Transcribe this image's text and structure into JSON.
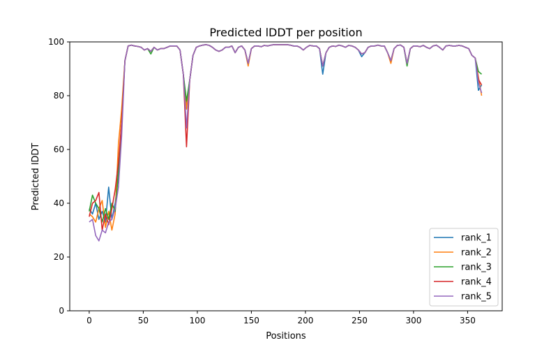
{
  "chart_data": {
    "type": "line",
    "title": "Predicted lDDT per position",
    "xlabel": "Positions",
    "ylabel": "Predicted lDDT",
    "xlim": [
      -18,
      382
    ],
    "ylim": [
      0,
      100
    ],
    "xticks": [
      0,
      50,
      100,
      150,
      200,
      250,
      300,
      350
    ],
    "yticks": [
      0,
      20,
      40,
      60,
      80,
      100
    ],
    "grid": false,
    "legend": "lower-right",
    "x": [
      0,
      3,
      6,
      9,
      12,
      15,
      18,
      21,
      24,
      27,
      30,
      33,
      36,
      39,
      42,
      45,
      48,
      51,
      54,
      57,
      60,
      63,
      66,
      69,
      72,
      75,
      78,
      81,
      84,
      87,
      90,
      93,
      96,
      99,
      102,
      105,
      108,
      111,
      114,
      117,
      120,
      123,
      126,
      129,
      132,
      135,
      138,
      141,
      144,
      147,
      150,
      153,
      156,
      159,
      162,
      165,
      168,
      171,
      174,
      177,
      180,
      183,
      186,
      189,
      192,
      195,
      198,
      201,
      204,
      207,
      210,
      213,
      216,
      219,
      222,
      225,
      228,
      231,
      234,
      237,
      240,
      243,
      246,
      249,
      252,
      255,
      258,
      261,
      264,
      267,
      270,
      273,
      276,
      279,
      282,
      285,
      288,
      291,
      294,
      297,
      300,
      303,
      306,
      309,
      312,
      315,
      318,
      321,
      324,
      327,
      330,
      333,
      336,
      339,
      342,
      345,
      348,
      351,
      354,
      357,
      360,
      363
    ],
    "series": [
      {
        "name": "rank_1",
        "color": "#1f77b4",
        "values": [
          38,
          36,
          40,
          34,
          37,
          33,
          46,
          34,
          40,
          50,
          70,
          93,
          98.5,
          98.8,
          98.5,
          98.3,
          98,
          97,
          97.5,
          96.5,
          98,
          97,
          97.5,
          97.5,
          98,
          98.5,
          98.5,
          98.5,
          97,
          88,
          76,
          86,
          95,
          98,
          98.5,
          98.8,
          99,
          98.7,
          98,
          97,
          96.5,
          97,
          98,
          98,
          98.5,
          96,
          98,
          98.5,
          97,
          92,
          97.5,
          98.5,
          98.5,
          98.2,
          98.7,
          98.5,
          98.8,
          99,
          99,
          99,
          99,
          99,
          98.8,
          98.5,
          98.5,
          98,
          97,
          98,
          98.7,
          98.5,
          98.5,
          97.5,
          88,
          96,
          98,
          98.5,
          98.3,
          98.8,
          98.5,
          98,
          98.7,
          98.5,
          98,
          97,
          94.5,
          96,
          98,
          98.5,
          98.5,
          98.8,
          98.5,
          98.5,
          96,
          93,
          97.5,
          98.7,
          98.8,
          98,
          92,
          97.5,
          98.5,
          98.5,
          98.2,
          98.7,
          98,
          97.5,
          98.5,
          98.8,
          98,
          97,
          98.5,
          98.7,
          98.5,
          98.5,
          98.7,
          98.5,
          98,
          97.5,
          95,
          94,
          82,
          84
        ]
      },
      {
        "name": "rank_2",
        "color": "#ff7f0e",
        "values": [
          36,
          35,
          33,
          38,
          41,
          31,
          37,
          30,
          36,
          62,
          75,
          93,
          98.5,
          98.8,
          98.5,
          98.3,
          98,
          97,
          97.5,
          96.5,
          98,
          97,
          97.5,
          97.5,
          98,
          98.5,
          98.5,
          98.5,
          97,
          88,
          75,
          86,
          95,
          98,
          98.5,
          98.8,
          99,
          98.7,
          98,
          97,
          96.5,
          97,
          98,
          98,
          98.5,
          96,
          98,
          98.5,
          97,
          91,
          97.5,
          98.5,
          98.5,
          98.2,
          98.7,
          98.5,
          98.8,
          99,
          99,
          99,
          99,
          99,
          98.8,
          98.5,
          98.5,
          98,
          97,
          98,
          98.7,
          98.5,
          98.5,
          97.5,
          91,
          96,
          98,
          98.5,
          98.3,
          98.8,
          98.5,
          98,
          98.7,
          98.5,
          98,
          97,
          95.5,
          96,
          98,
          98.5,
          98.5,
          98.8,
          98.5,
          98.5,
          96,
          92,
          97.5,
          98.7,
          98.8,
          98,
          92,
          97.5,
          98.5,
          98.5,
          98.2,
          98.7,
          98,
          97.5,
          98.5,
          98.8,
          98,
          97,
          98.5,
          98.7,
          98.5,
          98.5,
          98.7,
          98.5,
          98,
          97.5,
          95,
          94,
          87,
          80
        ]
      },
      {
        "name": "rank_3",
        "color": "#2ca02c",
        "values": [
          37,
          43,
          40,
          38,
          33,
          38,
          34,
          40,
          37,
          52,
          70,
          93,
          98.5,
          98.8,
          98.5,
          98.3,
          98,
          97,
          97.5,
          95.5,
          98,
          97,
          97.5,
          97.5,
          98,
          98.5,
          98.5,
          98.5,
          97,
          88,
          78,
          86,
          95,
          98,
          98.5,
          98.8,
          99,
          98.7,
          98,
          97,
          96.5,
          97,
          98,
          98,
          98.5,
          96,
          98,
          98.5,
          97,
          92,
          97.5,
          98.5,
          98.5,
          98.2,
          98.7,
          98.5,
          98.8,
          99,
          99,
          99,
          99,
          99,
          98.8,
          98.5,
          98.5,
          98,
          97,
          98,
          98.7,
          98.5,
          98.5,
          97.5,
          91,
          96,
          98,
          98.5,
          98.3,
          98.8,
          98.5,
          98,
          98.7,
          98.5,
          98,
          97,
          95.5,
          96,
          98,
          98.5,
          98.5,
          98.8,
          98.5,
          98.5,
          96,
          93,
          97.5,
          98.7,
          98.8,
          98,
          91,
          97.5,
          98.5,
          98.5,
          98.2,
          98.7,
          98,
          97.5,
          98.5,
          98.8,
          98,
          97,
          98.5,
          98.7,
          98.5,
          98.5,
          98.7,
          98.5,
          98,
          97.5,
          95,
          94,
          89,
          88
        ]
      },
      {
        "name": "rank_4",
        "color": "#d62728",
        "values": [
          35,
          40,
          41,
          44,
          30,
          36,
          32,
          38,
          45,
          55,
          70,
          93,
          98.5,
          98.8,
          98.5,
          98.3,
          98,
          97,
          97.5,
          96.5,
          98,
          97,
          97.5,
          97.5,
          98,
          98.5,
          98.5,
          98.5,
          97,
          88,
          61,
          86,
          95,
          98,
          98.5,
          98.8,
          99,
          98.7,
          98,
          97,
          96.5,
          97,
          98,
          98,
          98.5,
          96,
          98,
          98.5,
          97,
          92,
          97.5,
          98.5,
          98.5,
          98.2,
          98.7,
          98.5,
          98.8,
          99,
          99,
          99,
          99,
          99,
          98.8,
          98.5,
          98.5,
          98,
          97,
          98,
          98.7,
          98.5,
          98.5,
          97.5,
          91,
          96,
          98,
          98.5,
          98.3,
          98.8,
          98.5,
          98,
          98.7,
          98.5,
          98,
          97,
          95.5,
          96,
          98,
          98.5,
          98.5,
          98.8,
          98.5,
          98.5,
          96,
          93,
          97.5,
          98.7,
          98.8,
          98,
          92,
          97.5,
          98.5,
          98.5,
          98.2,
          98.7,
          98,
          97.5,
          98.5,
          98.8,
          98,
          97,
          98.5,
          98.7,
          98.5,
          98.5,
          98.7,
          98.5,
          98,
          97.5,
          95,
          94,
          86,
          84
        ]
      },
      {
        "name": "rank_5",
        "color": "#9467bd",
        "values": [
          33,
          34,
          28,
          26,
          30,
          29,
          33,
          34,
          38,
          46,
          65,
          93,
          98.5,
          98.8,
          98.5,
          98.3,
          98,
          97,
          97.5,
          96.5,
          98,
          97,
          97.5,
          97.5,
          98,
          98.5,
          98.5,
          98.5,
          97,
          88,
          68,
          86,
          95,
          98,
          98.5,
          98.8,
          99,
          98.7,
          98,
          97,
          96.5,
          97,
          98,
          98,
          98.5,
          96,
          98,
          98.5,
          97,
          92,
          97.5,
          98.5,
          98.5,
          98.2,
          98.7,
          98.5,
          98.8,
          99,
          99,
          99,
          99,
          99,
          98.8,
          98.5,
          98.5,
          98,
          97,
          98,
          98.7,
          98.5,
          98.5,
          97.5,
          91,
          96,
          98,
          98.5,
          98.3,
          98.8,
          98.5,
          98,
          98.7,
          98.5,
          98,
          97,
          95.5,
          96,
          98,
          98.5,
          98.5,
          98.8,
          98.5,
          98.5,
          96,
          93,
          97.5,
          98.7,
          98.8,
          98,
          92,
          97.5,
          98.5,
          98.5,
          98.2,
          98.7,
          98,
          97.5,
          98.5,
          98.8,
          98,
          97,
          98.5,
          98.7,
          98.5,
          98.5,
          98.7,
          98.5,
          98,
          97.5,
          95,
          94,
          85,
          81
        ]
      }
    ]
  }
}
